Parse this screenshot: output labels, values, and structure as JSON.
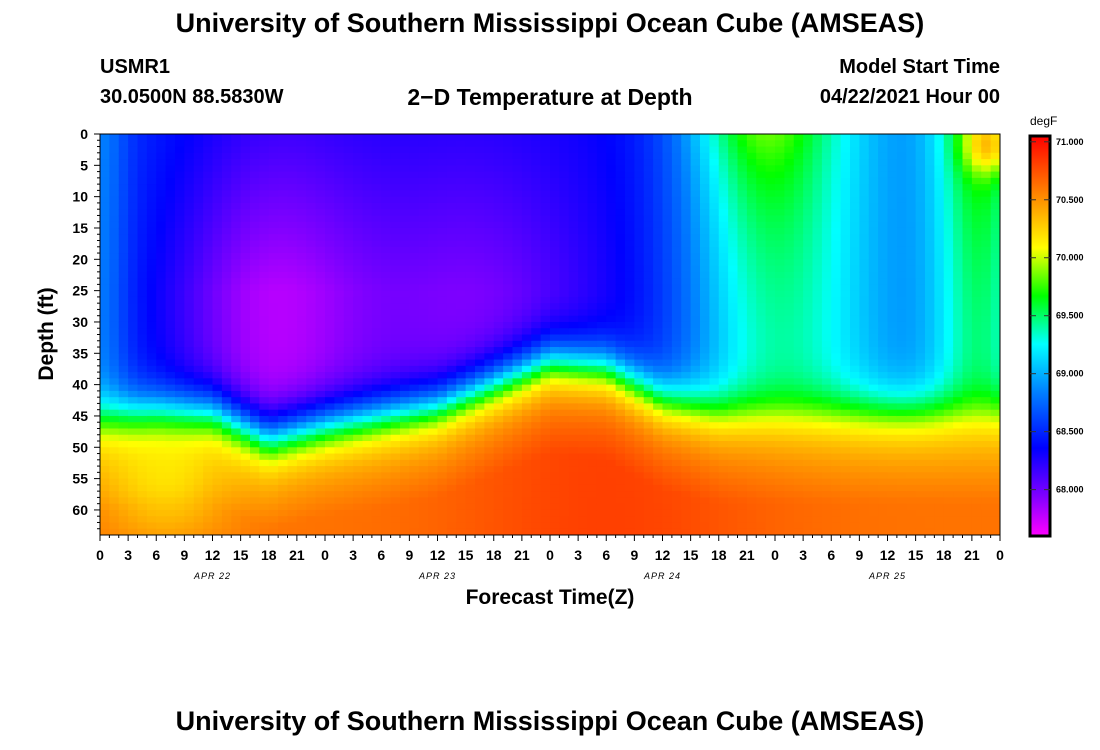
{
  "header": {
    "title": "University of Southern Mississippi Ocean Cube (AMSEAS)",
    "station": "USMR1",
    "coords": "30.0500N  88.5830W",
    "plot_title": "2−D Temperature at Depth",
    "start_label": "Model Start Time",
    "start_value": "04/22/2021 Hour 00"
  },
  "footer": {
    "title": "University of Southern Mississippi Ocean Cube (AMSEAS)"
  },
  "chart_data": {
    "type": "heatmap",
    "xlabel": "Forecast Time(Z)",
    "ylabel": "Depth (ft)",
    "x_ticks": [
      "0",
      "3",
      "6",
      "9",
      "12",
      "15",
      "18",
      "21",
      "0",
      "3",
      "6",
      "9",
      "12",
      "15",
      "18",
      "21",
      "0",
      "3",
      "6",
      "9",
      "12",
      "15",
      "18",
      "21",
      "0",
      "3",
      "6",
      "9",
      "12",
      "15",
      "18",
      "21",
      "0"
    ],
    "x_hours": [
      0,
      96
    ],
    "date_labels": [
      {
        "label": "APR 22",
        "hour": 12
      },
      {
        "label": "APR 23",
        "hour": 36
      },
      {
        "label": "APR 24",
        "hour": 60
      },
      {
        "label": "APR 25",
        "hour": 84
      }
    ],
    "y_ticks": [
      0,
      5,
      10,
      15,
      20,
      25,
      30,
      35,
      40,
      45,
      50,
      55,
      60
    ],
    "ylim": [
      0,
      64
    ],
    "y_inverted": true,
    "colorbar": {
      "unit": "degF",
      "min": 67.6,
      "max": 71.05,
      "ticks": [
        "71.000",
        "70.500",
        "70.000",
        "69.500",
        "69.000",
        "68.500",
        "68.000"
      ],
      "tick_values": [
        71.0,
        70.5,
        70.0,
        69.5,
        69.0,
        68.5,
        68.0
      ]
    },
    "thermocline_depth_ft": [
      {
        "hour": 0,
        "depth": 45
      },
      {
        "hour": 6,
        "depth": 44
      },
      {
        "hour": 12,
        "depth": 44
      },
      {
        "hour": 18,
        "depth": 48
      },
      {
        "hour": 24,
        "depth": 46
      },
      {
        "hour": 36,
        "depth": 43
      },
      {
        "hour": 48,
        "depth": 36
      },
      {
        "hour": 54,
        "depth": 37
      },
      {
        "hour": 60,
        "depth": 42
      },
      {
        "hour": 66,
        "depth": 44
      },
      {
        "hour": 72,
        "depth": 44
      },
      {
        "hour": 84,
        "depth": 44
      },
      {
        "hour": 96,
        "depth": 44
      }
    ]
  }
}
